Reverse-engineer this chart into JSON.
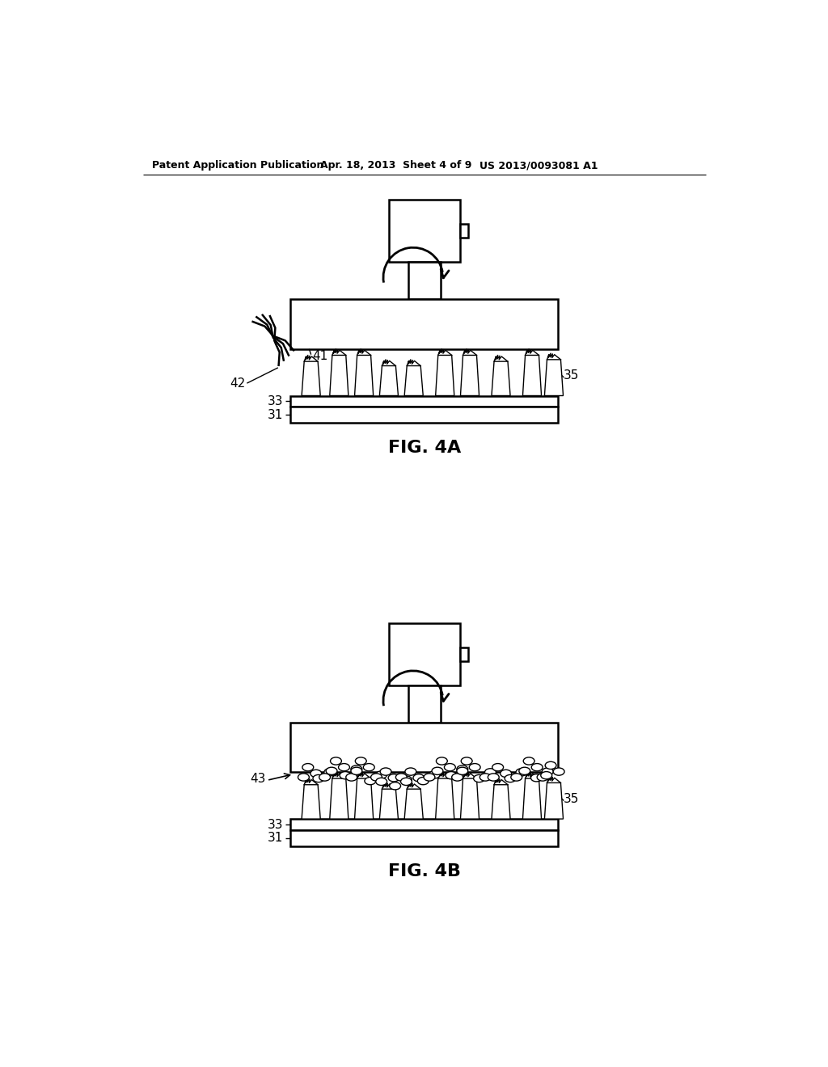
{
  "bg_color": "#ffffff",
  "line_color": "#000000",
  "header_text": "Patent Application Publication",
  "header_date": "Apr. 18, 2013  Sheet 4 of 9",
  "header_patent": "US 2013/0093081 A1",
  "fig4a_label": "FIG. 4A",
  "fig4b_label": "FIG. 4B",
  "label_41": "41",
  "label_42": "42",
  "label_33a": "33",
  "label_31a": "31",
  "label_35a": "35",
  "label_43": "43",
  "label_33b": "33",
  "label_31b": "31",
  "label_35b": "35"
}
